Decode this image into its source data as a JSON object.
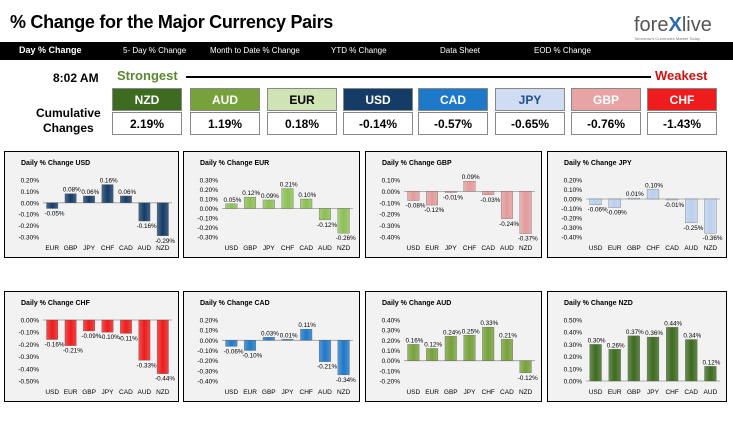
{
  "header": {
    "title": "% Change for the Major Currency Pairs",
    "logo_prefix": "fore",
    "logo_x": "X",
    "logo_suffix": "live",
    "logo_tagline": "Tomorrow's Currencies Market Today"
  },
  "nav": {
    "items": [
      "Day % Change",
      "5- Day % Change",
      "Month to Date % Change",
      "YTD % Change",
      "Data Sheet",
      "EOD % Change"
    ]
  },
  "summary": {
    "time": "8:02 AM",
    "strongest_label": "Strongest",
    "weakest_label": "Weakest",
    "cumulative_line1": "Cumulative",
    "cumulative_line2": "Changes",
    "currencies": [
      {
        "code": "NZD",
        "value": "2.19%",
        "bg": "#3d6b1f",
        "fg": "#ffffff"
      },
      {
        "code": "AUD",
        "value": "1.19%",
        "bg": "#77a13b",
        "fg": "#ffffff"
      },
      {
        "code": "EUR",
        "value": "0.18%",
        "bg": "#cfe3b4",
        "fg": "#000000"
      },
      {
        "code": "USD",
        "value": "-0.14%",
        "bg": "#153c66",
        "fg": "#ffffff"
      },
      {
        "code": "CAD",
        "value": "-0.57%",
        "bg": "#1f79c9",
        "fg": "#ffffff"
      },
      {
        "code": "JPY",
        "value": "-0.65%",
        "bg": "#cfdcf1",
        "fg": "#1f4e8c"
      },
      {
        "code": "GBP",
        "value": "-0.76%",
        "bg": "#e8a4a4",
        "fg": "#ffffff"
      },
      {
        "code": "CHF",
        "value": "-1.43%",
        "bg": "#ee1c1c",
        "fg": "#ffffff"
      }
    ]
  },
  "chart_data": [
    {
      "type": "bar",
      "title": "Daily % Change USD",
      "categories": [
        "EUR",
        "GBP",
        "JPY",
        "CHF",
        "CAD",
        "AUD",
        "NZD"
      ],
      "values": [
        -0.05,
        0.08,
        0.06,
        0.16,
        0.06,
        -0.16,
        -0.29
      ],
      "labels": [
        "-0.05%",
        "0.08%",
        "0.06%",
        "0.16%",
        "0.06%",
        "-0.16%",
        "-0.29%"
      ],
      "ylim": [
        -0.3,
        0.2
      ],
      "yticks": [
        "0.20%",
        "0.10%",
        "0.00%",
        "-0.10%",
        "-0.20%",
        "-0.30%"
      ],
      "color": "#153c66"
    },
    {
      "type": "bar",
      "title": "Daily % Change EUR",
      "categories": [
        "USD",
        "GBP",
        "JPY",
        "CHF",
        "CAD",
        "AUD",
        "NZD"
      ],
      "values": [
        0.05,
        0.12,
        0.09,
        0.21,
        0.1,
        -0.12,
        -0.26
      ],
      "labels": [
        "0.05%",
        "0.12%",
        "0.09%",
        "0.21%",
        "0.10%",
        "-0.12%",
        "-0.26%"
      ],
      "ylim": [
        -0.3,
        0.3
      ],
      "yticks": [
        "0.30%",
        "0.20%",
        "0.10%",
        "0.00%",
        "-0.10%",
        "-0.20%",
        "-0.30%"
      ],
      "color": "#8dbf54"
    },
    {
      "type": "bar",
      "title": "Daily % Change GBP",
      "categories": [
        "USD",
        "EUR",
        "JPY",
        "CHF",
        "CAD",
        "AUD",
        "NZD"
      ],
      "values": [
        -0.08,
        -0.12,
        -0.01,
        0.09,
        -0.03,
        -0.24,
        -0.37
      ],
      "labels": [
        "-0.08%",
        "-0.12%",
        "-0.01%",
        "0.09%",
        "-0.03%",
        "-0.24%",
        "-0.37%"
      ],
      "ylim": [
        -0.4,
        0.1
      ],
      "yticks": [
        "0.10%",
        "0.00%",
        "-0.10%",
        "-0.20%",
        "-0.30%",
        "-0.40%"
      ],
      "color": "#e39b9b"
    },
    {
      "type": "bar",
      "title": "Daily % Change JPY",
      "categories": [
        "USD",
        "EUR",
        "GBP",
        "CHF",
        "CAD",
        "AUD",
        "NZD"
      ],
      "values": [
        -0.06,
        -0.09,
        0.01,
        0.1,
        -0.01,
        -0.25,
        -0.36
      ],
      "labels": [
        "-0.06%",
        "-0.09%",
        "0.01%",
        "0.10%",
        "-0.01%",
        "-0.25%",
        "-0.36%"
      ],
      "ylim": [
        -0.4,
        0.2
      ],
      "yticks": [
        "0.20%",
        "0.10%",
        "0.00%",
        "-0.10%",
        "-0.20%",
        "-0.30%",
        "-0.40%"
      ],
      "color": "#bcd0ee"
    },
    {
      "type": "bar",
      "title": "Daily % Change CHF",
      "categories": [
        "USD",
        "EUR",
        "GBP",
        "JPY",
        "CAD",
        "AUD",
        "NZD"
      ],
      "values": [
        -0.16,
        -0.21,
        -0.09,
        -0.1,
        -0.11,
        -0.33,
        -0.44
      ],
      "labels": [
        "-0.16%",
        "-0.21%",
        "-0.09%",
        "-0.10%",
        "-0.11%",
        "-0.33%",
        "-0.44%"
      ],
      "ylim": [
        -0.5,
        0.0
      ],
      "yticks": [
        "0.00%",
        "-0.10%",
        "-0.20%",
        "-0.30%",
        "-0.40%",
        "-0.50%"
      ],
      "color": "#ee1c1c"
    },
    {
      "type": "bar",
      "title": "Daily % Change CAD",
      "categories": [
        "USD",
        "EUR",
        "GBP",
        "JPY",
        "CHF",
        "AUD",
        "NZD"
      ],
      "values": [
        -0.06,
        -0.1,
        0.03,
        0.01,
        0.11,
        -0.21,
        -0.34
      ],
      "labels": [
        "-0.06%",
        "-0.10%",
        "0.03%",
        "0.01%",
        "0.11%",
        "-0.21%",
        "-0.34%"
      ],
      "ylim": [
        -0.4,
        0.2
      ],
      "yticks": [
        "0.20%",
        "0.10%",
        "0.00%",
        "-0.10%",
        "-0.20%",
        "-0.30%",
        "-0.40%"
      ],
      "color": "#1f79c9"
    },
    {
      "type": "bar",
      "title": "Daily % Change AUD",
      "categories": [
        "USD",
        "EUR",
        "GBP",
        "JPY",
        "CHF",
        "CAD",
        "NZD"
      ],
      "values": [
        0.16,
        0.12,
        0.24,
        0.25,
        0.33,
        0.21,
        -0.12
      ],
      "labels": [
        "0.16%",
        "0.12%",
        "0.24%",
        "0.25%",
        "0.33%",
        "0.21%",
        "-0.12%"
      ],
      "ylim": [
        -0.2,
        0.4
      ],
      "yticks": [
        "0.40%",
        "0.30%",
        "0.20%",
        "0.10%",
        "0.00%",
        "-0.10%",
        "-0.20%"
      ],
      "color": "#77a13b"
    },
    {
      "type": "bar",
      "title": "Daily % Change NZD",
      "categories": [
        "USD",
        "EUR",
        "GBP",
        "JPY",
        "CHF",
        "CAD",
        "AUD"
      ],
      "values": [
        0.3,
        0.26,
        0.37,
        0.36,
        0.44,
        0.34,
        0.12
      ],
      "labels": [
        "0.30%",
        "0.26%",
        "0.37%",
        "0.36%",
        "0.44%",
        "0.34%",
        "0.12%"
      ],
      "ylim": [
        0.0,
        0.5
      ],
      "yticks": [
        "0.50%",
        "0.40%",
        "0.30%",
        "0.20%",
        "0.10%",
        "0.00%"
      ],
      "color": "#3d6b1f"
    }
  ]
}
